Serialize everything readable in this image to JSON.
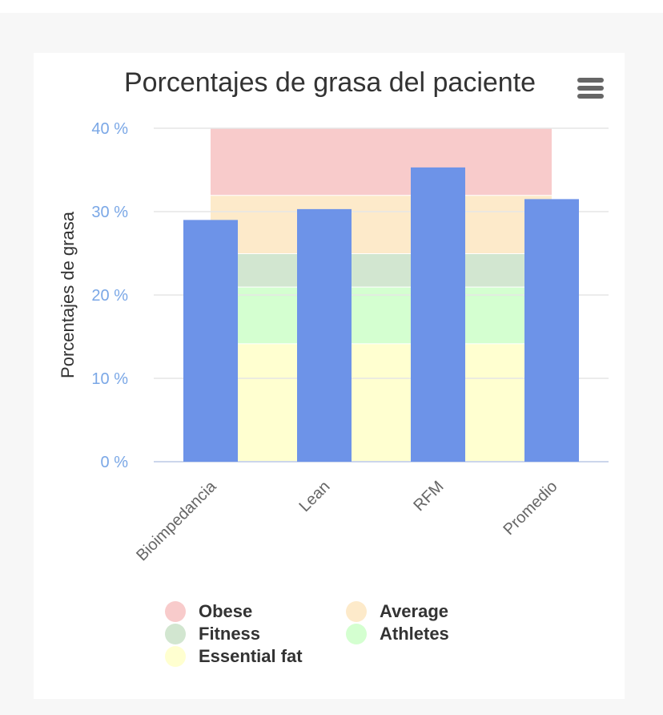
{
  "chart_data": {
    "type": "bar",
    "title": "Porcentajes de grasa del paciente",
    "ylabel": "Porcentajes de grasa",
    "xlabel": "",
    "ylim": [
      0,
      40
    ],
    "yticks": [
      0,
      10,
      20,
      30,
      40
    ],
    "ytick_suffix": " %",
    "ytick_labels": [
      "0 %",
      "10 %",
      "20 %",
      "30 %",
      "40 %"
    ],
    "categories": [
      "Bioimpedancia",
      "Lean",
      "RFM",
      "Promedio"
    ],
    "values": [
      29,
      30.3,
      35.3,
      31.5
    ],
    "bar_color": "#6d93e8",
    "grid": true,
    "legend_position": "bottom",
    "bands": [
      {
        "name": "Essential fat",
        "from": 0,
        "to": 14.2,
        "color": "#ffffd0"
      },
      {
        "name": "Athletes",
        "from": 14.2,
        "to": 21,
        "color": "#d4ffd0"
      },
      {
        "name": "Fitness",
        "from": 21,
        "to": 25,
        "color": "#d2e6d0"
      },
      {
        "name": "Average",
        "from": 25,
        "to": 32,
        "color": "#fdeaca"
      },
      {
        "name": "Obese",
        "from": 32,
        "to": 40,
        "color": "#f8cbcb"
      }
    ],
    "legend": [
      {
        "name": "Obese",
        "color": "#f8cbcb"
      },
      {
        "name": "Average",
        "color": "#fdeaca"
      },
      {
        "name": "Fitness",
        "color": "#d2e6d0"
      },
      {
        "name": "Athletes",
        "color": "#d4ffd0"
      },
      {
        "name": "Essential fat",
        "color": "#ffffd0"
      }
    ]
  },
  "menu": {
    "icon": "hamburger-menu-icon"
  }
}
